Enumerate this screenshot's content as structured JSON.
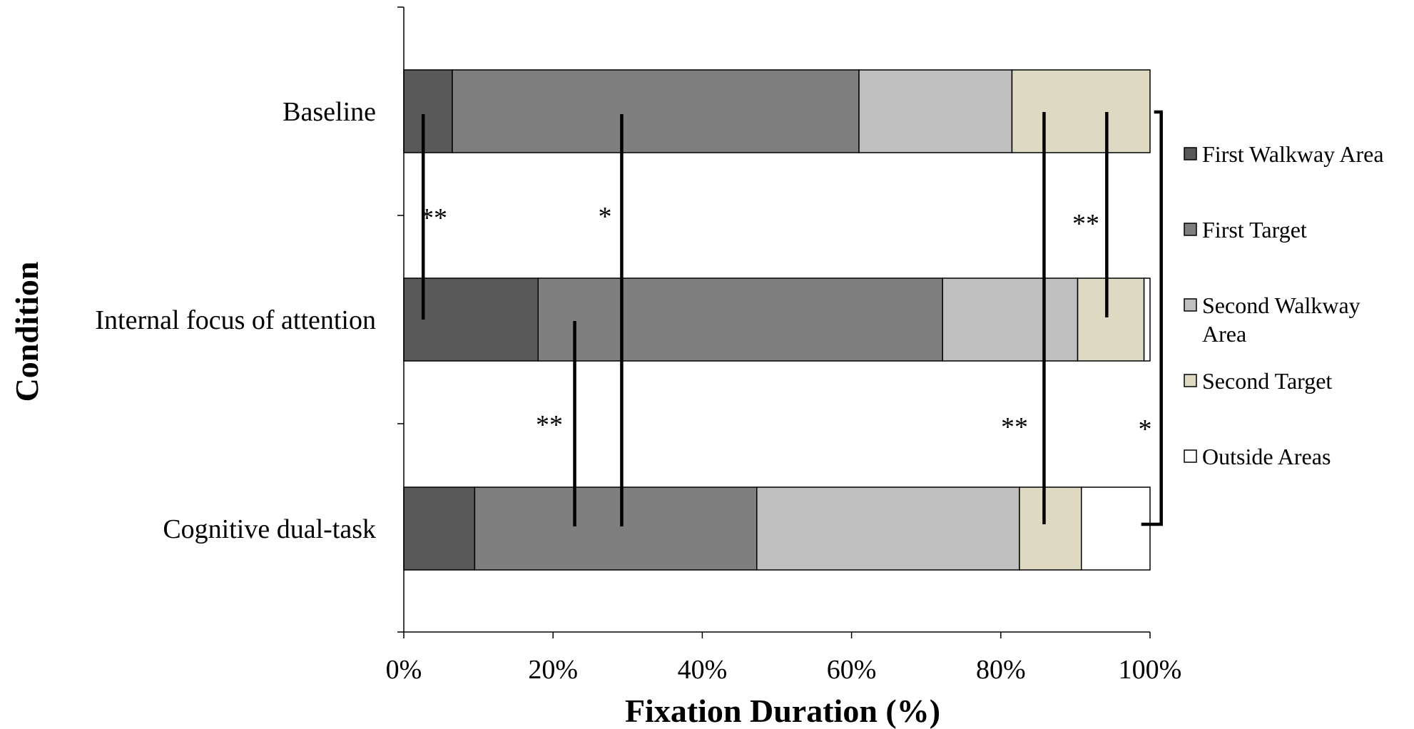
{
  "chart_data": {
    "type": "bar",
    "orientation": "horizontal",
    "stacked": true,
    "xlabel": "Fixation Duration (%)",
    "ylabel": "Condition",
    "xlim": [
      0,
      100
    ],
    "xticks": [
      "0%",
      "20%",
      "40%",
      "60%",
      "80%",
      "100%"
    ],
    "categories": [
      "Baseline",
      "Internal focus of attention",
      "Cognitive dual-task"
    ],
    "series": [
      {
        "name": "First Walkway Area",
        "color": "#595959",
        "values": [
          6.5,
          18.0,
          9.5
        ]
      },
      {
        "name": "First Target",
        "color": "#7f7f7f",
        "values": [
          54.5,
          54.2,
          37.8
        ]
      },
      {
        "name": "Second Walkway Area",
        "color": "#bfbfbf",
        "values": [
          20.5,
          18.1,
          35.2
        ]
      },
      {
        "name": "Second Target",
        "color": "#ddd9c3",
        "values": [
          18.5,
          8.9,
          8.3
        ]
      },
      {
        "name": "Outside Areas",
        "color": "#ffffff",
        "values": [
          0.0,
          0.8,
          9.2
        ]
      }
    ],
    "grid": false,
    "legend": "right",
    "significance": [
      {
        "label": "**",
        "x": 2.6,
        "between": [
          "Baseline",
          "Internal focus of attention"
        ]
      },
      {
        "label": "*",
        "x": 29.2,
        "between": [
          "Baseline",
          "Cognitive dual-task"
        ]
      },
      {
        "label": "**",
        "x": 94.2,
        "between": [
          "Baseline",
          "Internal focus of attention"
        ]
      },
      {
        "label": "**",
        "x": 22.9,
        "between": [
          "Internal focus of attention",
          "Cognitive dual-task"
        ]
      },
      {
        "label": "**",
        "x": 85.8,
        "between": [
          "Baseline",
          "Cognitive dual-task"
        ]
      },
      {
        "label": "*",
        "x": 101.5,
        "between": [
          "Baseline",
          "Cognitive dual-task"
        ],
        "bracket": true
      }
    ]
  }
}
